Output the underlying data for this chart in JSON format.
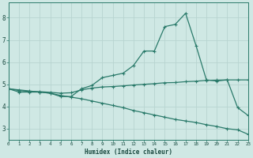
{
  "xlabel": "Humidex (Indice chaleur)",
  "background_color": "#cfe8e4",
  "grid_color": "#b8d4d0",
  "line_color": "#2a7a6a",
  "x_values": [
    0,
    1,
    2,
    3,
    4,
    5,
    6,
    7,
    8,
    9,
    10,
    11,
    12,
    13,
    14,
    15,
    16,
    17,
    18,
    19,
    20,
    21,
    22,
    23
  ],
  "curve1": [
    4.8,
    4.65,
    4.65,
    4.65,
    4.6,
    4.45,
    4.45,
    4.8,
    4.95,
    5.3,
    5.4,
    5.5,
    5.85,
    6.5,
    6.5,
    7.6,
    7.7,
    8.2,
    6.75,
    5.2,
    5.15,
    5.2,
    3.95,
    3.6
  ],
  "curve2": [
    4.8,
    4.72,
    4.68,
    4.67,
    4.64,
    4.6,
    4.62,
    4.75,
    4.83,
    4.88,
    4.9,
    4.93,
    4.97,
    5.0,
    5.03,
    5.07,
    5.08,
    5.12,
    5.14,
    5.18,
    5.19,
    5.2,
    5.2,
    5.2
  ],
  "curve3": [
    4.8,
    4.75,
    4.7,
    4.65,
    4.6,
    4.5,
    4.42,
    4.35,
    4.25,
    4.15,
    4.05,
    3.95,
    3.82,
    3.72,
    3.62,
    3.52,
    3.42,
    3.35,
    3.28,
    3.18,
    3.1,
    3.0,
    2.95,
    2.75
  ],
  "ylim": [
    2.5,
    8.7
  ],
  "xlim": [
    0,
    23
  ],
  "yticks": [
    3,
    4,
    5,
    6,
    7,
    8
  ],
  "xticks": [
    0,
    1,
    2,
    3,
    4,
    5,
    6,
    7,
    8,
    9,
    10,
    11,
    12,
    13,
    14,
    15,
    16,
    17,
    18,
    19,
    20,
    21,
    22,
    23
  ]
}
